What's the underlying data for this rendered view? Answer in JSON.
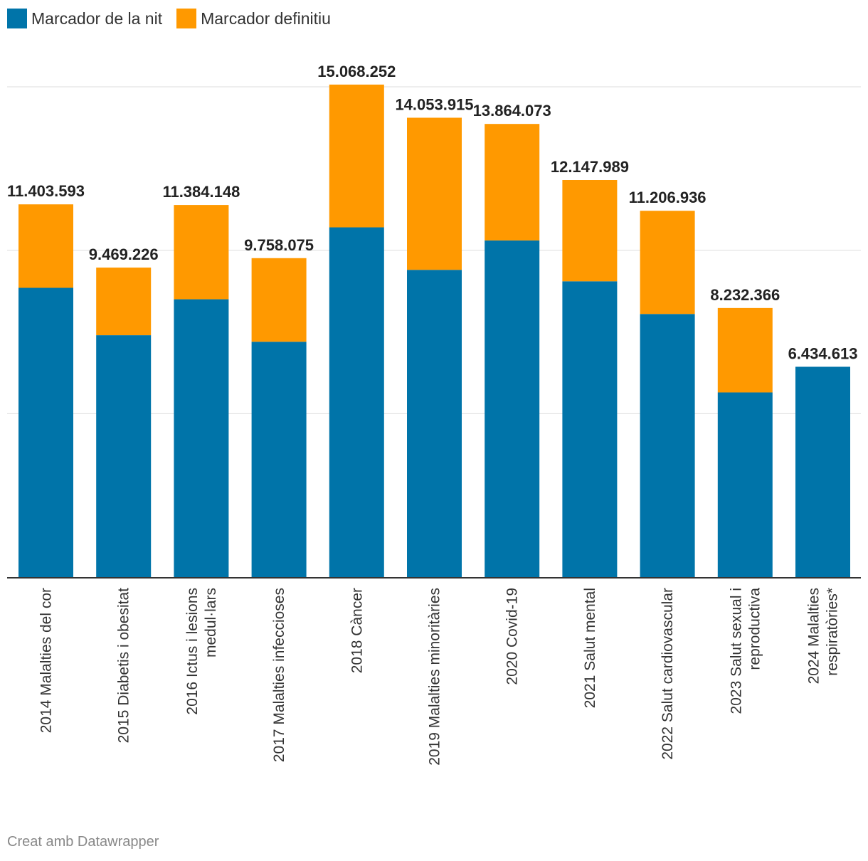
{
  "legend": {
    "items": [
      {
        "label": "Marcador de la nit",
        "color": "#0074a9"
      },
      {
        "label": "Marcador definitiu",
        "color": "#ff9900"
      }
    ]
  },
  "footer": {
    "credit": "Creat amb Datawrapper"
  },
  "chart_data": {
    "type": "bar",
    "stacked": true,
    "title": "",
    "xlabel": "",
    "ylabel": "",
    "ylim": [
      0,
      15000000
    ],
    "grid": true,
    "legend_position": "top-left",
    "categories": [
      [
        "2014 Malalties del cor"
      ],
      [
        "2015 Diabetis i obesitat"
      ],
      [
        "2016 Ictus i lesions",
        "medul·lars"
      ],
      [
        "2017 Malalties infeccioses"
      ],
      [
        "2018 Càncer"
      ],
      [
        "2019 Malalties minoritàries"
      ],
      [
        "2020 Covid-19"
      ],
      [
        "2021 Salut mental"
      ],
      [
        "2022 Salut cardiovascular"
      ],
      [
        "2023 Salut sexual i",
        "reproductiva"
      ],
      [
        "2024 Malalties",
        "respiratòries*"
      ]
    ],
    "series": [
      {
        "name": "Marcador de la nit",
        "color": "#0074a9",
        "values": [
          8850000,
          7400000,
          8500000,
          7200000,
          10700000,
          9400000,
          10300000,
          9050000,
          8050000,
          5650000,
          6434613
        ]
      },
      {
        "name": "Marcador definitiu",
        "color": "#ff9900",
        "values": [
          2553593,
          2069226,
          2884148,
          2558075,
          4368252,
          4653915,
          3564073,
          3097989,
          3156936,
          2582366,
          0
        ]
      }
    ],
    "totals": [
      "11.403.593",
      "9.469.226",
      "11.384.148",
      "9.758.075",
      "15.068.252",
      "14.053.915",
      "13.864.073",
      "12.147.989",
      "11.206.936",
      "8.232.366",
      "6.434.613"
    ]
  }
}
